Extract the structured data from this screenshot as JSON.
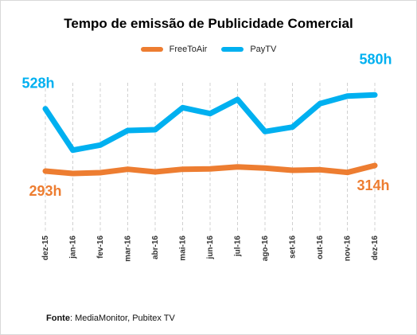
{
  "chart_data": {
    "type": "line",
    "title": "Tempo de emissão de Publicidade Comercial",
    "categories": [
      "dez-15",
      "jan-16",
      "fev-16",
      "mar-16",
      "abr-16",
      "mai-16",
      "jun-16",
      "jul-16",
      "ago-16",
      "set-16",
      "out-16",
      "nov-16",
      "dez-16"
    ],
    "series": [
      {
        "name": "FreeToAir",
        "color": "#ED7D31",
        "values": [
          293,
          284,
          287,
          300,
          290,
          300,
          301,
          309,
          304,
          296,
          298,
          288,
          314
        ],
        "start_label": "293h",
        "end_label": "314h"
      },
      {
        "name": "PayTV",
        "color": "#00B0F0",
        "values": [
          528,
          372,
          391,
          446,
          449,
          532,
          510,
          563,
          442,
          459,
          547,
          576,
          580
        ],
        "start_label": "528h",
        "end_label": "580h"
      }
    ],
    "xlabel": "",
    "ylabel": "",
    "grid": "vertical-dashed",
    "legend": "top-center"
  },
  "source": {
    "label": "Fonte",
    "text": ": MediaMonitor, Pubitex TV"
  }
}
